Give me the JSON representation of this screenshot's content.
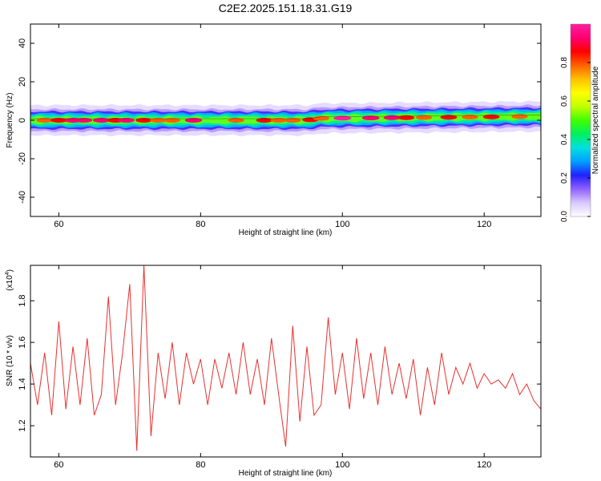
{
  "title": "C2E2.2025.151.18.31.G19",
  "chart_data": [
    {
      "type": "heatmap",
      "xlabel": "Height of straight line (km)",
      "ylabel": "Frequency (Hz)",
      "xlim": [
        56,
        128
      ],
      "ylim": [
        -50,
        50
      ],
      "xticks": [
        60,
        80,
        100,
        120
      ],
      "yticks": [
        40,
        20,
        0,
        -20,
        -40
      ],
      "band_center_hz": [
        [
          56,
          0
        ],
        [
          95,
          0
        ],
        [
          97,
          1
        ],
        [
          128,
          2
        ]
      ],
      "band_half_width_hz": 3,
      "colorbar": {
        "label": "Normalized spectral amplitude",
        "range": [
          0,
          1
        ],
        "ticks": [
          "0.0",
          "0.2",
          "0.4",
          "0.6",
          "0.8"
        ],
        "colors": [
          "#ffffff",
          "#d8c8ff",
          "#9060ff",
          "#2020ff",
          "#00a0ff",
          "#00e0e0",
          "#00f060",
          "#40ff00",
          "#c0ff00",
          "#ffff00",
          "#ffc000",
          "#ff6000",
          "#ff0000",
          "#ff0070",
          "#ff20a0"
        ]
      },
      "hotspots": [
        [
          58,
          0.8
        ],
        [
          60,
          0.85
        ],
        [
          62,
          0.9
        ],
        [
          63.5,
          0.95
        ],
        [
          66,
          0.9
        ],
        [
          68,
          0.85
        ],
        [
          69.5,
          0.9
        ],
        [
          72,
          0.85
        ],
        [
          74,
          0.8
        ],
        [
          76,
          0.8
        ],
        [
          79,
          0.95
        ],
        [
          85,
          0.8
        ],
        [
          89,
          0.85
        ],
        [
          91,
          0.8
        ],
        [
          93,
          0.8
        ],
        [
          95.5,
          0.85
        ],
        [
          97,
          0.8
        ],
        [
          100,
          1.0
        ],
        [
          104,
          0.95
        ],
        [
          107,
          0.9
        ],
        [
          109,
          0.85
        ],
        [
          111.5,
          0.8
        ],
        [
          115,
          0.85
        ],
        [
          118,
          0.8
        ],
        [
          121,
          0.85
        ],
        [
          125,
          0.8
        ]
      ]
    },
    {
      "type": "line",
      "xlabel": "Height of straight line (km)",
      "ylabel": "SNR (10 * v/v)",
      "exponent_label": "(x10",
      "exponent_power": "4",
      "exponent_close": ")",
      "xlim": [
        56,
        128
      ],
      "ylim": [
        1.05,
        1.97
      ],
      "xticks": [
        60,
        80,
        100,
        120
      ],
      "yticks": [
        "1.2",
        "1.4",
        "1.6",
        "1.8"
      ],
      "series_color": "#e83030",
      "x": [
        56,
        57,
        58,
        59,
        60,
        61,
        62,
        63,
        64,
        65,
        66,
        67,
        68,
        69,
        70,
        71,
        72,
        73,
        74,
        75,
        76,
        77,
        78,
        79,
        80,
        81,
        82,
        83,
        84,
        85,
        86,
        87,
        88,
        89,
        90,
        91,
        92,
        93,
        94,
        95,
        96,
        97,
        98,
        99,
        100,
        101,
        102,
        103,
        104,
        105,
        106,
        107,
        108,
        109,
        110,
        111,
        112,
        113,
        114,
        115,
        116,
        117,
        118,
        119,
        120,
        121,
        122,
        123,
        124,
        125,
        126,
        127,
        128
      ],
      "y": [
        1.5,
        1.3,
        1.55,
        1.25,
        1.7,
        1.28,
        1.58,
        1.3,
        1.62,
        1.25,
        1.35,
        1.82,
        1.3,
        1.55,
        1.88,
        1.08,
        1.97,
        1.15,
        1.55,
        1.33,
        1.6,
        1.3,
        1.55,
        1.4,
        1.52,
        1.3,
        1.52,
        1.38,
        1.55,
        1.35,
        1.6,
        1.35,
        1.52,
        1.3,
        1.62,
        1.35,
        1.1,
        1.68,
        1.22,
        1.58,
        1.25,
        1.3,
        1.72,
        1.35,
        1.55,
        1.28,
        1.62,
        1.33,
        1.55,
        1.3,
        1.58,
        1.35,
        1.5,
        1.33,
        1.52,
        1.25,
        1.48,
        1.3,
        1.55,
        1.35,
        1.48,
        1.4,
        1.5,
        1.38,
        1.45,
        1.4,
        1.42,
        1.38,
        1.45,
        1.35,
        1.4,
        1.32,
        1.28
      ]
    }
  ]
}
